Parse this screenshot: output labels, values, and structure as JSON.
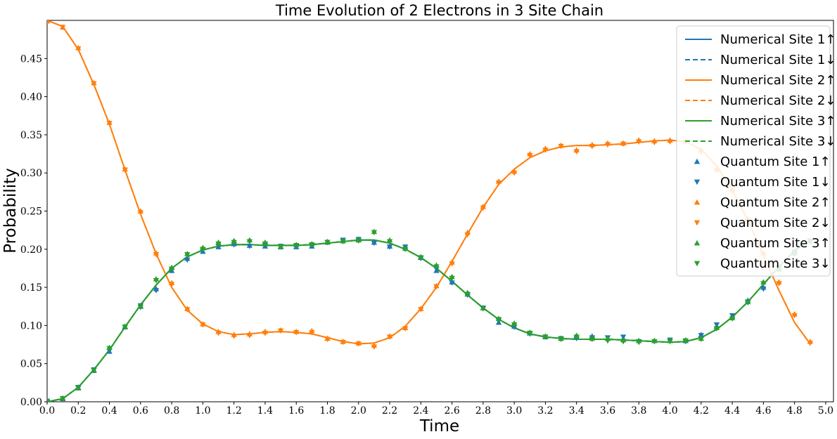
{
  "chart_data": {
    "type": "line",
    "title": "Time Evolution of 2 Electrons in 3 Site Chain",
    "xlabel": "Time",
    "ylabel": "Probability",
    "xlim": [
      0.0,
      5.05
    ],
    "ylim": [
      0.0,
      0.5
    ],
    "xticks": [
      "0.0",
      "0.2",
      "0.4",
      "0.6",
      "0.8",
      "1.0",
      "1.2",
      "1.4",
      "1.6",
      "1.8",
      "2.0",
      "2.2",
      "2.4",
      "2.6",
      "2.8",
      "3.0",
      "3.2",
      "3.4",
      "3.6",
      "3.8",
      "4.0",
      "4.2",
      "4.4",
      "4.6",
      "4.8",
      "5.0"
    ],
    "yticks": [
      "0.00",
      "0.05",
      "0.10",
      "0.15",
      "0.20",
      "0.25",
      "0.30",
      "0.35",
      "0.40",
      "0.45"
    ],
    "grid": false,
    "legend_position": "upper-right",
    "colors": {
      "site1": "#1f77b4",
      "site2": "#ff7f0e",
      "site3": "#2ca02c"
    },
    "numerical_t": [
      0.0,
      0.1,
      0.2,
      0.3,
      0.4,
      0.5,
      0.6,
      0.7,
      0.8,
      0.9,
      1.0,
      1.1,
      1.2,
      1.3,
      1.4,
      1.5,
      1.6,
      1.7,
      1.8,
      1.9,
      2.0,
      2.1,
      2.2,
      2.3,
      2.4,
      2.5,
      2.6,
      2.7,
      2.8,
      2.9,
      3.0,
      3.1,
      3.2,
      3.3,
      3.4,
      3.5,
      3.6,
      3.7,
      3.8,
      3.9,
      4.0,
      4.1,
      4.2,
      4.3,
      4.4,
      4.5,
      4.6,
      4.7,
      4.8,
      4.9
    ],
    "quantum_t": [
      0.0,
      0.1,
      0.2,
      0.3,
      0.4,
      0.5,
      0.6,
      0.7,
      0.8,
      0.9,
      1.0,
      1.1,
      1.2,
      1.3,
      1.4,
      1.5,
      1.6,
      1.7,
      1.8,
      1.9,
      2.0,
      2.1,
      2.2,
      2.3,
      2.4,
      2.5,
      2.6,
      2.7,
      2.8,
      2.9,
      3.0,
      3.1,
      3.2,
      3.3,
      3.4,
      3.5,
      3.6,
      3.7,
      3.8,
      3.9,
      4.0,
      4.1,
      4.2,
      4.3,
      4.4,
      4.5,
      4.6,
      4.7,
      4.8,
      4.9
    ],
    "series": [
      {
        "name": "Numerical Site 1↑",
        "kind": "numerical",
        "site": 1,
        "style": "solid",
        "color": "#1f77b4",
        "values": [
          0.0,
          0.004,
          0.019,
          0.042,
          0.068,
          0.098,
          0.127,
          0.153,
          0.175,
          0.19,
          0.199,
          0.204,
          0.206,
          0.206,
          0.205,
          0.205,
          0.205,
          0.206,
          0.208,
          0.21,
          0.212,
          0.212,
          0.208,
          0.2,
          0.189,
          0.175,
          0.158,
          0.14,
          0.123,
          0.108,
          0.097,
          0.089,
          0.085,
          0.083,
          0.082,
          0.082,
          0.082,
          0.081,
          0.08,
          0.079,
          0.078,
          0.079,
          0.084,
          0.095,
          0.111,
          0.131,
          0.154,
          0.177,
          0.198,
          0.212
        ]
      },
      {
        "name": "Numerical Site 1↓",
        "kind": "numerical",
        "site": 1,
        "style": "dashed",
        "color": "#1f77b4",
        "values": [
          0.0,
          0.004,
          0.019,
          0.042,
          0.068,
          0.098,
          0.127,
          0.153,
          0.175,
          0.19,
          0.199,
          0.204,
          0.206,
          0.206,
          0.205,
          0.205,
          0.205,
          0.206,
          0.208,
          0.21,
          0.212,
          0.212,
          0.208,
          0.2,
          0.189,
          0.175,
          0.158,
          0.14,
          0.123,
          0.108,
          0.097,
          0.089,
          0.085,
          0.083,
          0.082,
          0.082,
          0.082,
          0.081,
          0.08,
          0.079,
          0.078,
          0.079,
          0.084,
          0.095,
          0.111,
          0.131,
          0.154,
          0.177,
          0.198,
          0.212
        ]
      },
      {
        "name": "Numerical Site 2↑",
        "kind": "numerical",
        "site": 2,
        "style": "solid",
        "color": "#ff7f0e",
        "values": [
          0.5,
          0.492,
          0.462,
          0.416,
          0.364,
          0.304,
          0.246,
          0.194,
          0.15,
          0.12,
          0.102,
          0.092,
          0.088,
          0.089,
          0.091,
          0.092,
          0.091,
          0.089,
          0.084,
          0.079,
          0.076,
          0.077,
          0.084,
          0.099,
          0.122,
          0.15,
          0.184,
          0.22,
          0.255,
          0.285,
          0.305,
          0.32,
          0.329,
          0.334,
          0.336,
          0.336,
          0.337,
          0.338,
          0.34,
          0.342,
          0.343,
          0.341,
          0.331,
          0.309,
          0.278,
          0.238,
          0.192,
          0.146,
          0.104,
          0.076
        ]
      },
      {
        "name": "Numerical Site 2↓",
        "kind": "numerical",
        "site": 2,
        "style": "dashed",
        "color": "#ff7f0e",
        "values": [
          0.5,
          0.492,
          0.462,
          0.416,
          0.364,
          0.304,
          0.246,
          0.194,
          0.15,
          0.12,
          0.102,
          0.092,
          0.088,
          0.089,
          0.091,
          0.092,
          0.091,
          0.089,
          0.084,
          0.079,
          0.076,
          0.077,
          0.084,
          0.099,
          0.122,
          0.15,
          0.184,
          0.22,
          0.255,
          0.285,
          0.305,
          0.32,
          0.329,
          0.334,
          0.336,
          0.336,
          0.337,
          0.338,
          0.34,
          0.342,
          0.343,
          0.341,
          0.331,
          0.309,
          0.278,
          0.238,
          0.192,
          0.146,
          0.104,
          0.076
        ]
      },
      {
        "name": "Numerical Site 3↑",
        "kind": "numerical",
        "site": 3,
        "style": "solid",
        "color": "#2ca02c",
        "values": [
          0.0,
          0.004,
          0.019,
          0.042,
          0.068,
          0.098,
          0.127,
          0.153,
          0.175,
          0.19,
          0.199,
          0.204,
          0.206,
          0.206,
          0.205,
          0.205,
          0.205,
          0.206,
          0.208,
          0.21,
          0.212,
          0.212,
          0.208,
          0.2,
          0.189,
          0.175,
          0.158,
          0.14,
          0.123,
          0.108,
          0.097,
          0.089,
          0.085,
          0.083,
          0.082,
          0.082,
          0.082,
          0.081,
          0.08,
          0.079,
          0.078,
          0.079,
          0.084,
          0.095,
          0.111,
          0.131,
          0.154,
          0.177,
          0.198,
          0.212
        ]
      },
      {
        "name": "Numerical Site 3↓",
        "kind": "numerical",
        "site": 3,
        "style": "dashed",
        "color": "#2ca02c",
        "values": [
          0.0,
          0.004,
          0.019,
          0.042,
          0.068,
          0.098,
          0.127,
          0.153,
          0.175,
          0.19,
          0.199,
          0.204,
          0.206,
          0.206,
          0.205,
          0.205,
          0.205,
          0.206,
          0.208,
          0.21,
          0.212,
          0.212,
          0.208,
          0.2,
          0.189,
          0.175,
          0.158,
          0.14,
          0.123,
          0.108,
          0.097,
          0.089,
          0.085,
          0.083,
          0.082,
          0.082,
          0.082,
          0.081,
          0.08,
          0.079,
          0.078,
          0.079,
          0.084,
          0.095,
          0.111,
          0.131,
          0.154,
          0.177,
          0.198,
          0.212
        ]
      },
      {
        "name": "Quantum Site 1↑",
        "kind": "quantum",
        "site": 1,
        "marker": "triangle-up",
        "color": "#1f77b4",
        "values": [
          0.0,
          0.004,
          0.018,
          0.041,
          0.066,
          0.098,
          0.125,
          0.148,
          0.172,
          0.188,
          0.197,
          0.203,
          0.207,
          0.205,
          0.204,
          0.203,
          0.203,
          0.204,
          0.209,
          0.211,
          0.213,
          0.209,
          0.204,
          0.203,
          0.189,
          0.172,
          0.157,
          0.141,
          0.123,
          0.104,
          0.099,
          0.09,
          0.085,
          0.083,
          0.085,
          0.086,
          0.083,
          0.083,
          0.08,
          0.08,
          0.08,
          0.08,
          0.088,
          0.099,
          0.112,
          0.133,
          0.15,
          0.176,
          0.197,
          0.21
        ]
      },
      {
        "name": "Quantum Site 1↓",
        "kind": "quantum",
        "site": 1,
        "marker": "triangle-down",
        "color": "#1f77b4",
        "values": [
          0.0,
          0.004,
          0.019,
          0.042,
          0.067,
          0.098,
          0.126,
          0.146,
          0.172,
          0.186,
          0.199,
          0.204,
          0.206,
          0.204,
          0.205,
          0.204,
          0.204,
          0.205,
          0.209,
          0.212,
          0.213,
          0.208,
          0.203,
          0.203,
          0.188,
          0.174,
          0.156,
          0.14,
          0.123,
          0.106,
          0.098,
          0.089,
          0.085,
          0.083,
          0.083,
          0.084,
          0.084,
          0.085,
          0.079,
          0.079,
          0.081,
          0.079,
          0.087,
          0.101,
          0.113,
          0.131,
          0.148,
          0.176,
          0.196,
          0.211
        ]
      },
      {
        "name": "Quantum Site 2↑",
        "kind": "quantum",
        "site": 2,
        "marker": "triangle-up",
        "color": "#ff7f0e",
        "values": [
          0.499,
          0.491,
          0.464,
          0.418,
          0.366,
          0.305,
          0.25,
          0.195,
          0.156,
          0.122,
          0.102,
          0.092,
          0.088,
          0.089,
          0.092,
          0.094,
          0.092,
          0.093,
          0.083,
          0.079,
          0.077,
          0.074,
          0.086,
          0.097,
          0.122,
          0.152,
          0.183,
          0.222,
          0.256,
          0.289,
          0.302,
          0.325,
          0.332,
          0.336,
          0.33,
          0.337,
          0.339,
          0.339,
          0.343,
          0.342,
          0.343,
          0.342,
          0.33,
          0.305,
          0.278,
          0.24,
          0.195,
          0.157,
          0.115,
          0.079
        ]
      },
      {
        "name": "Quantum Site 2↓",
        "kind": "quantum",
        "site": 2,
        "marker": "triangle-down",
        "color": "#ff7f0e",
        "values": [
          0.499,
          0.491,
          0.463,
          0.417,
          0.365,
          0.304,
          0.248,
          0.193,
          0.154,
          0.121,
          0.101,
          0.09,
          0.086,
          0.087,
          0.09,
          0.093,
          0.091,
          0.091,
          0.082,
          0.078,
          0.076,
          0.072,
          0.085,
          0.096,
          0.121,
          0.151,
          0.181,
          0.219,
          0.254,
          0.287,
          0.3,
          0.323,
          0.33,
          0.335,
          0.328,
          0.335,
          0.337,
          0.338,
          0.341,
          0.34,
          0.341,
          0.34,
          0.328,
          0.303,
          0.276,
          0.238,
          0.193,
          0.155,
          0.113,
          0.077
        ]
      },
      {
        "name": "Quantum Site 3↑",
        "kind": "quantum",
        "site": 3,
        "marker": "triangle-up",
        "color": "#2ca02c",
        "values": [
          0.001,
          0.005,
          0.019,
          0.042,
          0.071,
          0.099,
          0.126,
          0.161,
          0.176,
          0.194,
          0.202,
          0.209,
          0.211,
          0.212,
          0.209,
          0.204,
          0.206,
          0.207,
          0.21,
          0.211,
          0.212,
          0.223,
          0.212,
          0.201,
          0.19,
          0.179,
          0.164,
          0.143,
          0.123,
          0.109,
          0.103,
          0.091,
          0.086,
          0.083,
          0.087,
          0.083,
          0.083,
          0.081,
          0.08,
          0.08,
          0.08,
          0.081,
          0.083,
          0.097,
          0.11,
          0.131,
          0.157,
          0.174,
          0.195,
          0.211
        ]
      },
      {
        "name": "Quantum Site 3↓",
        "kind": "quantum",
        "site": 3,
        "marker": "triangle-down",
        "color": "#2ca02c",
        "values": [
          0.001,
          0.004,
          0.018,
          0.041,
          0.07,
          0.098,
          0.124,
          0.159,
          0.174,
          0.193,
          0.2,
          0.207,
          0.209,
          0.21,
          0.207,
          0.203,
          0.205,
          0.206,
          0.209,
          0.21,
          0.211,
          0.222,
          0.21,
          0.2,
          0.189,
          0.177,
          0.162,
          0.141,
          0.122,
          0.108,
          0.101,
          0.09,
          0.085,
          0.082,
          0.085,
          0.082,
          0.08,
          0.079,
          0.078,
          0.079,
          0.079,
          0.08,
          0.082,
          0.096,
          0.109,
          0.13,
          0.155,
          0.173,
          0.194,
          0.21
        ]
      }
    ]
  }
}
